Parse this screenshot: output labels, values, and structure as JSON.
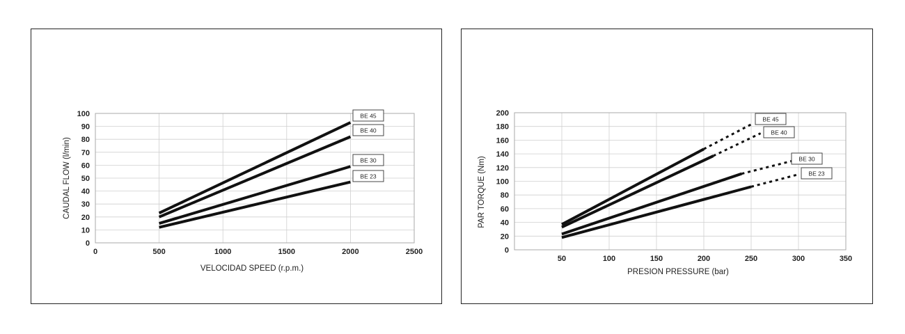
{
  "chart_data": [
    {
      "type": "line",
      "title": "",
      "xlabel": "VELOCIDAD SPEED (r.p.m.)",
      "ylabel": "CAUDAL FLOW (l/min)",
      "xlim": [
        0,
        2500
      ],
      "ylim": [
        0,
        100
      ],
      "xticks": [
        "0",
        "500",
        "1000",
        "1500",
        "2000",
        "2500"
      ],
      "yticks": [
        "0",
        "10",
        "20",
        "30",
        "40",
        "50",
        "60",
        "70",
        "80",
        "90",
        "100"
      ],
      "grid": true,
      "series": [
        {
          "name": "BE 45",
          "x": [
            500,
            2000
          ],
          "y": [
            23,
            93
          ]
        },
        {
          "name": "BE 40",
          "x": [
            500,
            2000
          ],
          "y": [
            20,
            82
          ]
        },
        {
          "name": "BE 30",
          "x": [
            500,
            2000
          ],
          "y": [
            15,
            59
          ]
        },
        {
          "name": "BE 23",
          "x": [
            500,
            2000
          ],
          "y": [
            12,
            47
          ]
        }
      ]
    },
    {
      "type": "line",
      "title": "",
      "xlabel": "PRESION PRESSURE (bar)",
      "ylabel": "PAR TORQUE (Nm)",
      "xlim": [
        0,
        350
      ],
      "ylim": [
        0,
        200
      ],
      "xticks": [
        "50",
        "100",
        "150",
        "200",
        "250",
        "300",
        "350"
      ],
      "yticks": [
        "0",
        "20",
        "40",
        "60",
        "80",
        "100",
        "120",
        "140",
        "160",
        "180",
        "200"
      ],
      "grid": true,
      "series": [
        {
          "name": "BE 45",
          "x": [
            50,
            200
          ],
          "y": [
            37,
            147
          ],
          "dashed_x": [
            200,
            250
          ],
          "dashed_y": [
            147,
            183
          ]
        },
        {
          "name": "BE 40",
          "x": [
            50,
            210
          ],
          "y": [
            33,
            137
          ],
          "dashed_x": [
            210,
            260
          ],
          "dashed_y": [
            137,
            170
          ]
        },
        {
          "name": "BE 30",
          "x": [
            50,
            240
          ],
          "y": [
            23,
            111
          ],
          "dashed_x": [
            240,
            300
          ],
          "dashed_y": [
            111,
            132
          ]
        },
        {
          "name": "BE 23",
          "x": [
            50,
            250
          ],
          "y": [
            18,
            92
          ],
          "dashed_x": [
            250,
            300
          ],
          "dashed_y": [
            92,
            110
          ]
        }
      ]
    }
  ]
}
